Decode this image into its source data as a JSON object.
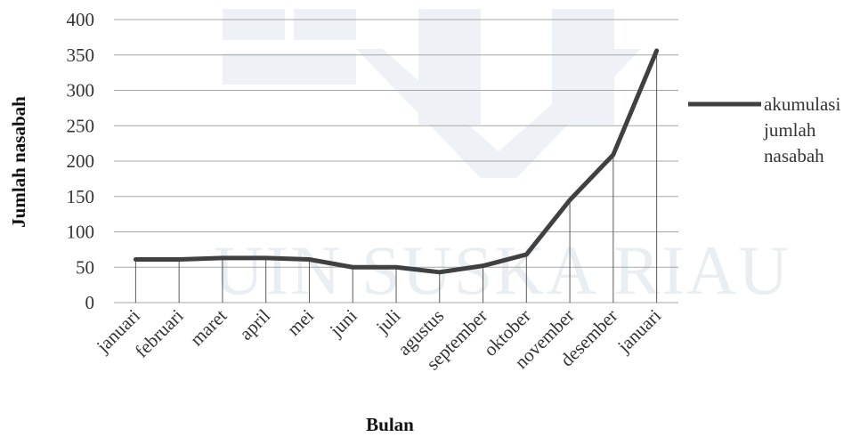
{
  "chart_data": {
    "type": "line",
    "title": "",
    "xlabel": "Bulan",
    "ylabel": "Jumlah nasabah",
    "categories": [
      "januari",
      "februari",
      "maret",
      "april",
      "mei",
      "juni",
      "juli",
      "agustus",
      "september",
      "oktober",
      "november",
      "desember",
      "januari"
    ],
    "series": [
      {
        "name": "akumulasi jumlah nasabah",
        "values": [
          61,
          61,
          63,
          63,
          61,
          50,
          50,
          43,
          52,
          68,
          145,
          209,
          356
        ]
      }
    ],
    "ylim": [
      0,
      400
    ],
    "yticks": [
      0,
      50,
      100,
      150,
      200,
      250,
      300,
      350,
      400
    ],
    "grid": true,
    "drop_lines": true,
    "legend_position": "right",
    "legend_lines": [
      "akumulasi",
      "jumlah",
      "nasabah"
    ],
    "series_color": "#404040",
    "grid_color": "#a6a6a6",
    "watermark_text": "UIN SUSKA RIAU"
  }
}
